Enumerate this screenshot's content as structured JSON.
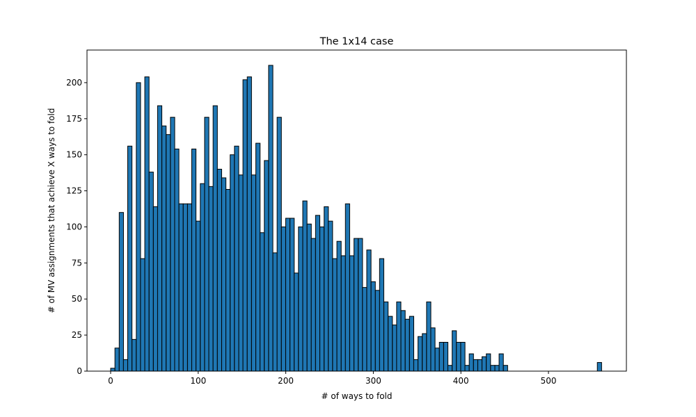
{
  "chart_data": {
    "type": "bar",
    "title": "The 1x14 case",
    "xlabel": "# of ways to fold",
    "ylabel": "# of MV assignments that achieve X ways to fold",
    "xlim": [
      -27,
      589
    ],
    "ylim": [
      0,
      222.6
    ],
    "xticks": [
      0,
      100,
      200,
      300,
      400,
      500
    ],
    "yticks": [
      0,
      25,
      50,
      75,
      100,
      125,
      150,
      175,
      200
    ],
    "bin_width": 4.875,
    "bar_color": "#1f77b4",
    "edge_color": "#000000",
    "grid": false,
    "series": [
      {
        "bins": [
          [
            0,
            2
          ],
          [
            4.9,
            16
          ],
          [
            9.8,
            110
          ],
          [
            14.6,
            8
          ],
          [
            19.5,
            156
          ],
          [
            24.4,
            22
          ],
          [
            29.3,
            200
          ],
          [
            34.1,
            78
          ],
          [
            39,
            204
          ],
          [
            43.9,
            138
          ],
          [
            48.8,
            114
          ],
          [
            53.6,
            184
          ],
          [
            58.5,
            170
          ],
          [
            63.4,
            164
          ],
          [
            68.3,
            176
          ],
          [
            73.1,
            154
          ],
          [
            78,
            116
          ],
          [
            82.9,
            116
          ],
          [
            87.8,
            116
          ],
          [
            92.6,
            154
          ],
          [
            97.5,
            104
          ],
          [
            102.4,
            130
          ],
          [
            107.3,
            176
          ],
          [
            112.1,
            128
          ],
          [
            117,
            184
          ],
          [
            121.9,
            140
          ],
          [
            126.8,
            134
          ],
          [
            131.6,
            126
          ],
          [
            136.5,
            150
          ],
          [
            141.4,
            156
          ],
          [
            146.3,
            136
          ],
          [
            151.1,
            202
          ],
          [
            156,
            204
          ],
          [
            160.9,
            136
          ],
          [
            165.8,
            158
          ],
          [
            170.6,
            96
          ],
          [
            175.5,
            146
          ],
          [
            180.4,
            212
          ],
          [
            185.3,
            82
          ],
          [
            190.1,
            176
          ],
          [
            195,
            100
          ],
          [
            199.9,
            106
          ],
          [
            204.8,
            106
          ],
          [
            209.6,
            68
          ],
          [
            214.5,
            100
          ],
          [
            219.4,
            118
          ],
          [
            224.3,
            102
          ],
          [
            229.1,
            92
          ],
          [
            234,
            108
          ],
          [
            238.9,
            100
          ],
          [
            243.8,
            114
          ],
          [
            248.6,
            104
          ],
          [
            253.5,
            78
          ],
          [
            258.4,
            90
          ],
          [
            263.3,
            80
          ],
          [
            268.1,
            116
          ],
          [
            273,
            80
          ],
          [
            277.9,
            92
          ],
          [
            282.8,
            92
          ],
          [
            287.6,
            58
          ],
          [
            292.5,
            84
          ],
          [
            297.4,
            62
          ],
          [
            302.3,
            56
          ],
          [
            307.1,
            78
          ],
          [
            312,
            48
          ],
          [
            316.9,
            38
          ],
          [
            321.8,
            32
          ],
          [
            326.6,
            48
          ],
          [
            331.5,
            42
          ],
          [
            336.4,
            36
          ],
          [
            341.3,
            38
          ],
          [
            346.1,
            8
          ],
          [
            351,
            24
          ],
          [
            355.9,
            26
          ],
          [
            360.8,
            48
          ],
          [
            365.6,
            30
          ],
          [
            370.5,
            16
          ],
          [
            375.4,
            20
          ],
          [
            380.3,
            20
          ],
          [
            385.1,
            4
          ],
          [
            390,
            28
          ],
          [
            394.9,
            20
          ],
          [
            399.8,
            20
          ],
          [
            404.6,
            4
          ],
          [
            409.5,
            12
          ],
          [
            414.4,
            8
          ],
          [
            419.3,
            8
          ],
          [
            424.1,
            10
          ],
          [
            429,
            12
          ],
          [
            433.9,
            4
          ],
          [
            438.8,
            4
          ],
          [
            443.6,
            12
          ],
          [
            448.5,
            4
          ],
          [
            453.4,
            0
          ],
          [
            458.3,
            0
          ],
          [
            463.1,
            0
          ],
          [
            468,
            0
          ],
          [
            472.9,
            0
          ],
          [
            477.8,
            0
          ],
          [
            482.6,
            0
          ],
          [
            487.5,
            0
          ],
          [
            492.4,
            0
          ],
          [
            497.3,
            0
          ],
          [
            502.1,
            0
          ],
          [
            507,
            0
          ],
          [
            511.9,
            0
          ],
          [
            516.8,
            0
          ],
          [
            521.6,
            0
          ],
          [
            526.5,
            0
          ],
          [
            531.4,
            0
          ],
          [
            536.3,
            0
          ],
          [
            541.1,
            0
          ],
          [
            546,
            0
          ],
          [
            550.9,
            0
          ],
          [
            555.8,
            6
          ]
        ]
      }
    ]
  }
}
